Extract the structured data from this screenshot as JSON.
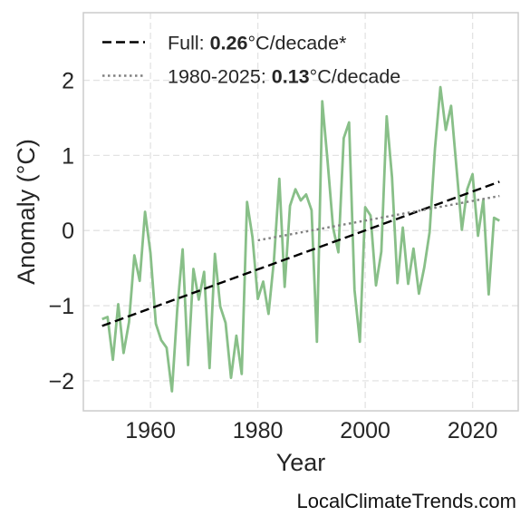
{
  "chart_data": {
    "type": "line",
    "xlabel": "Year",
    "ylabel": "Anomaly (°C)",
    "xlim": [
      1947.5,
      2028.5
    ],
    "ylim": [
      -2.4,
      2.9
    ],
    "xticks": [
      1960,
      1980,
      2000,
      2020
    ],
    "yticks": [
      2,
      1,
      0,
      -1,
      -2
    ],
    "xtick_labels": [
      "1960",
      "1980",
      "2000",
      "2020"
    ],
    "ytick_labels": [
      "2",
      "1",
      "0",
      "−1",
      "−2"
    ],
    "grid": true,
    "legend_position": "top-left",
    "series": [
      {
        "role": "observed",
        "color": "#88bf88",
        "x": [
          1951,
          1952,
          1953,
          1954,
          1955,
          1956,
          1957,
          1958,
          1959,
          1960,
          1961,
          1962,
          1963,
          1964,
          1965,
          1966,
          1967,
          1968,
          1969,
          1970,
          1971,
          1972,
          1973,
          1974,
          1975,
          1976,
          1977,
          1978,
          1979,
          1980,
          1981,
          1982,
          1983,
          1984,
          1985,
          1986,
          1987,
          1988,
          1989,
          1990,
          1991,
          1992,
          1993,
          1994,
          1995,
          1996,
          1997,
          1998,
          1999,
          2000,
          2001,
          2002,
          2003,
          2004,
          2005,
          2006,
          2007,
          2008,
          2009,
          2010,
          2011,
          2012,
          2013,
          2014,
          2015,
          2016,
          2017,
          2018,
          2019,
          2020,
          2021,
          2022,
          2023,
          2024,
          2025
        ],
        "y": [
          -1.18,
          -1.15,
          -1.72,
          -0.98,
          -1.63,
          -1.22,
          -0.33,
          -0.67,
          0.25,
          -0.3,
          -1.24,
          -1.46,
          -1.56,
          -2.14,
          -1.04,
          -0.25,
          -1.79,
          -0.51,
          -0.92,
          -0.55,
          -1.83,
          -0.31,
          -1.01,
          -1.23,
          -1.96,
          -1.4,
          -1.91,
          0.38,
          -0.09,
          -0.91,
          -0.68,
          -1.11,
          -0.39,
          0.69,
          -0.75,
          0.33,
          0.55,
          0.4,
          0.48,
          0.27,
          -1.48,
          1.72,
          0.92,
          0.04,
          -0.29,
          1.23,
          1.44,
          -0.79,
          -1.48,
          0.31,
          0.2,
          -0.73,
          -0.28,
          1.52,
          0.71,
          -0.7,
          0.04,
          -0.71,
          -0.24,
          -0.84,
          -0.49,
          -0.02,
          1.09,
          1.91,
          1.34,
          1.66,
          0.83,
          0.01,
          0.55,
          0.75,
          -0.07,
          0.41,
          -0.85,
          0.17,
          0.13
        ]
      },
      {
        "role": "trend-full",
        "color": "#000000",
        "dash": "dashed",
        "x": [
          1951,
          2025
        ],
        "y": [
          -1.27,
          0.65
        ]
      },
      {
        "role": "trend-recent",
        "color": "#808080",
        "dash": "dotted",
        "x": [
          1980,
          2025
        ],
        "y": [
          -0.13,
          0.46
        ]
      }
    ],
    "legend": [
      {
        "prefix": "Full: ",
        "value": "0.26",
        "suffix": "°C/decade*",
        "style": "dashed",
        "color": "#000000"
      },
      {
        "prefix": "1980-2025: ",
        "value": "0.13",
        "suffix": "°C/decade",
        "style": "dotted",
        "color": "#808080"
      }
    ]
  },
  "watermark": "LocalClimateTrends.com"
}
